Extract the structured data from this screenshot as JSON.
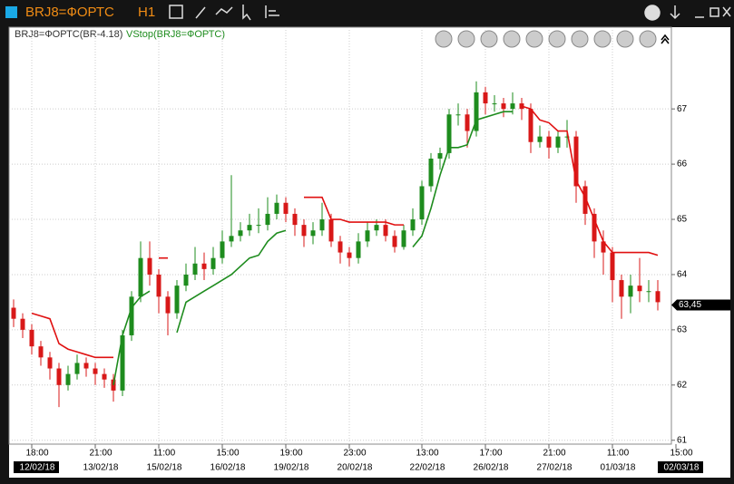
{
  "window": {
    "title": "BRJ8=ФОРТС",
    "timeframe": "H1"
  },
  "chart_data": {
    "type": "candlestick",
    "series_name": "BRJ8=ФОРТС(BR-4.18)",
    "indicator_name": "VStop(BRJ8=ФОРТС)",
    "up_color": "#1e8c1e",
    "down_color": "#d81818",
    "open": [
      63.4,
      63.2,
      63.0,
      62.7,
      62.5,
      62.3,
      62.0,
      62.2,
      62.4,
      62.3,
      62.2,
      62.1,
      61.9,
      62.9,
      63.6,
      64.3,
      64.0,
      63.6,
      63.3,
      63.8,
      64.0,
      64.2,
      64.1,
      64.3,
      64.6,
      64.7,
      64.8,
      64.9,
      64.9,
      65.1,
      65.3,
      65.1,
      64.9,
      64.7,
      64.8,
      65.0,
      64.6,
      64.4,
      64.3,
      64.6,
      64.8,
      64.9,
      64.7,
      64.5,
      64.8,
      65.0,
      65.6,
      66.1,
      66.2,
      66.9,
      66.9,
      66.6,
      67.3,
      67.1,
      67.1,
      67.0,
      67.1,
      67.0,
      66.4,
      66.5,
      66.3,
      66.5,
      66.5,
      65.6,
      65.1,
      64.6,
      64.4,
      63.9,
      63.6,
      63.8,
      63.7,
      63.7
    ],
    "high": [
      63.55,
      63.3,
      63.1,
      62.8,
      62.6,
      62.4,
      62.35,
      62.55,
      62.5,
      62.4,
      62.3,
      62.2,
      63.0,
      63.7,
      64.6,
      64.6,
      64.1,
      63.7,
      63.9,
      64.2,
      64.5,
      64.4,
      64.5,
      64.8,
      65.8,
      64.95,
      65.1,
      65.2,
      65.4,
      65.45,
      65.4,
      65.2,
      65.0,
      64.95,
      65.3,
      65.1,
      64.7,
      64.5,
      64.75,
      64.95,
      65.0,
      65.0,
      64.8,
      64.9,
      65.2,
      65.7,
      66.2,
      66.3,
      67.0,
      67.1,
      67.0,
      67.5,
      67.4,
      67.25,
      67.2,
      67.3,
      67.2,
      67.1,
      66.7,
      66.6,
      66.6,
      66.8,
      66.6,
      65.7,
      65.2,
      64.8,
      64.5,
      64.0,
      64.0,
      64.3,
      63.9,
      63.9
    ],
    "low": [
      63.05,
      62.85,
      62.55,
      62.35,
      62.1,
      61.6,
      61.9,
      62.1,
      62.15,
      62.0,
      61.95,
      61.7,
      61.8,
      62.8,
      63.5,
      63.8,
      63.3,
      62.9,
      63.2,
      63.7,
      63.9,
      63.9,
      64.0,
      64.2,
      64.5,
      64.6,
      64.7,
      64.75,
      64.8,
      65.0,
      64.95,
      64.7,
      64.5,
      64.55,
      64.7,
      64.5,
      64.2,
      64.15,
      64.2,
      64.5,
      64.7,
      64.6,
      64.4,
      64.45,
      64.7,
      64.9,
      65.5,
      65.9,
      66.1,
      66.7,
      66.3,
      66.5,
      66.9,
      66.95,
      66.85,
      66.9,
      66.8,
      66.2,
      66.3,
      66.1,
      66.2,
      66.3,
      65.3,
      64.9,
      64.3,
      64.0,
      63.5,
      63.2,
      63.3,
      63.5,
      63.5,
      63.35
    ],
    "close": [
      63.2,
      63.0,
      62.7,
      62.5,
      62.3,
      62.0,
      62.2,
      62.4,
      62.3,
      62.2,
      62.1,
      61.9,
      62.9,
      63.6,
      64.3,
      64.0,
      63.6,
      63.3,
      63.8,
      64.0,
      64.2,
      64.1,
      64.3,
      64.6,
      64.7,
      64.8,
      64.9,
      64.9,
      65.1,
      65.3,
      65.1,
      64.9,
      64.7,
      64.8,
      65.0,
      64.6,
      64.4,
      64.3,
      64.6,
      64.8,
      64.9,
      64.7,
      64.5,
      64.8,
      65.0,
      65.6,
      66.1,
      66.2,
      66.9,
      66.9,
      66.6,
      67.3,
      67.1,
      67.1,
      67.0,
      67.1,
      67.0,
      66.4,
      66.5,
      66.3,
      66.5,
      66.5,
      65.6,
      65.1,
      64.6,
      64.4,
      63.9,
      63.6,
      63.8,
      63.7,
      63.7,
      63.5
    ],
    "indicator_series": [
      {
        "color": "#e01010",
        "values": [
          null,
          null,
          63.3,
          63.25,
          63.2,
          62.75,
          62.65,
          62.6,
          62.55,
          62.5,
          62.5,
          62.5,
          null,
          null,
          null,
          null,
          64.3,
          64.3,
          null,
          null,
          null,
          null,
          null,
          null,
          null,
          null,
          null,
          null,
          null,
          null,
          null,
          null,
          65.4,
          65.4,
          65.4,
          65.0,
          65.0,
          64.95,
          64.95,
          64.95,
          64.95,
          64.95,
          64.9,
          64.9,
          null,
          null,
          null,
          null,
          null,
          null,
          null,
          null,
          null,
          null,
          null,
          null,
          67.05,
          67.0,
          66.8,
          66.75,
          66.6,
          66.6,
          65.7,
          65.4,
          65.0,
          64.6,
          64.4,
          64.4,
          64.4,
          64.4,
          64.4,
          64.35
        ]
      },
      {
        "color": "#1e8c1e",
        "values": [
          null,
          null,
          null,
          null,
          null,
          null,
          null,
          null,
          null,
          null,
          null,
          62.0,
          62.9,
          63.4,
          63.6,
          63.7,
          null,
          null,
          62.95,
          63.5,
          63.6,
          63.7,
          63.8,
          63.9,
          64.0,
          64.15,
          64.3,
          64.35,
          64.6,
          64.75,
          64.8,
          null,
          null,
          null,
          null,
          null,
          null,
          null,
          null,
          null,
          null,
          null,
          null,
          null,
          64.5,
          64.7,
          65.2,
          65.8,
          66.3,
          66.3,
          66.35,
          66.8,
          66.85,
          66.9,
          66.95,
          66.95,
          null,
          null,
          null,
          null,
          null,
          null,
          null,
          null,
          null,
          null,
          null,
          null,
          null,
          null,
          null,
          null
        ]
      }
    ],
    "last_price": 63.45,
    "last_price_label": "63,45",
    "xlim": [
      -0.5,
      72.5
    ],
    "xticks": [
      {
        "value": 2,
        "label": "18:00"
      },
      {
        "value": 9,
        "label": "21:00"
      },
      {
        "value": 16,
        "label": "11:00"
      },
      {
        "value": 23,
        "label": "15:00"
      },
      {
        "value": 30,
        "label": "19:00"
      },
      {
        "value": 37,
        "label": "23:00"
      },
      {
        "value": 45,
        "label": "13:00"
      },
      {
        "value": 52,
        "label": "17:00"
      },
      {
        "value": 59,
        "label": "21:00"
      },
      {
        "value": 66,
        "label": "11:00"
      },
      {
        "value": 73,
        "label": "15:00"
      }
    ],
    "xdates": [
      "12/02/18",
      "13/02/18",
      "15/02/18",
      "16/02/18",
      "19/02/18",
      "20/02/18",
      "22/02/18",
      "26/02/18",
      "27/02/18",
      "01/03/18",
      "02/03/18"
    ],
    "ylim": [
      60.93,
      68.48
    ],
    "yticks": [
      61,
      62,
      63,
      64,
      65,
      66,
      67
    ],
    "grid": true
  }
}
